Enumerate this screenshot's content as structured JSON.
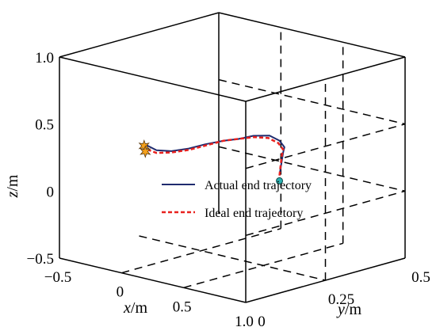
{
  "chart_data": {
    "type": "line",
    "projection": "3d",
    "grid": true,
    "legend_position": "center",
    "axes": {
      "x": {
        "label_var": "x",
        "label_unit": "/m",
        "ticks": [
          "−0.5",
          "0",
          "0.5",
          "1.0"
        ],
        "range": [
          -0.5,
          1.0
        ]
      },
      "y": {
        "label_var": "y",
        "label_unit": "/m",
        "ticks": [
          "0",
          "0.25",
          "0.5"
        ],
        "range": [
          0,
          0.5
        ]
      },
      "z": {
        "label_var": "z",
        "label_unit": "/m",
        "ticks": [
          "−0.5",
          "0",
          "0.5",
          "1.0"
        ],
        "range": [
          -0.5,
          1.0
        ]
      }
    },
    "series": [
      {
        "name": "Actual end trajectory",
        "color": "#1f2b6e",
        "style": "solid",
        "points": [
          [
            0.63,
            0.25,
            0.2
          ],
          [
            0.66,
            0.25,
            0.38
          ],
          [
            0.67,
            0.25,
            0.42
          ],
          [
            0.63,
            0.25,
            0.46
          ],
          [
            0.55,
            0.25,
            0.48
          ],
          [
            0.42,
            0.25,
            0.45
          ],
          [
            0.3,
            0.25,
            0.4
          ],
          [
            0.18,
            0.25,
            0.36
          ],
          [
            0.03,
            0.25,
            0.3
          ],
          [
            -0.1,
            0.25,
            0.24
          ],
          [
            -0.24,
            0.25,
            0.19
          ],
          [
            -0.36,
            0.25,
            0.17
          ],
          [
            -0.44,
            0.25,
            0.19
          ]
        ]
      },
      {
        "name": "Ideal end trajectory",
        "color": "#e8211e",
        "style": "dashed",
        "points": [
          [
            0.63,
            0.25,
            0.2
          ],
          [
            0.65,
            0.25,
            0.36
          ],
          [
            0.66,
            0.25,
            0.4
          ],
          [
            0.62,
            0.25,
            0.44
          ],
          [
            0.54,
            0.25,
            0.46
          ],
          [
            0.42,
            0.25,
            0.44
          ],
          [
            0.3,
            0.25,
            0.4
          ],
          [
            0.18,
            0.25,
            0.36
          ],
          [
            0.03,
            0.25,
            0.29
          ],
          [
            -0.1,
            0.25,
            0.23
          ],
          [
            -0.24,
            0.25,
            0.18
          ],
          [
            -0.36,
            0.25,
            0.15
          ],
          [
            -0.44,
            0.25,
            0.16
          ]
        ]
      }
    ],
    "markers": [
      {
        "kind": "star",
        "color": "#f7a21b",
        "point": [
          -0.46,
          0.25,
          0.18
        ]
      },
      {
        "kind": "star",
        "color": "#f7a21b",
        "point": [
          -0.45,
          0.25,
          0.14
        ]
      },
      {
        "kind": "circle",
        "color": "#2ab0b0",
        "point": [
          0.63,
          0.25,
          0.16
        ]
      }
    ]
  }
}
